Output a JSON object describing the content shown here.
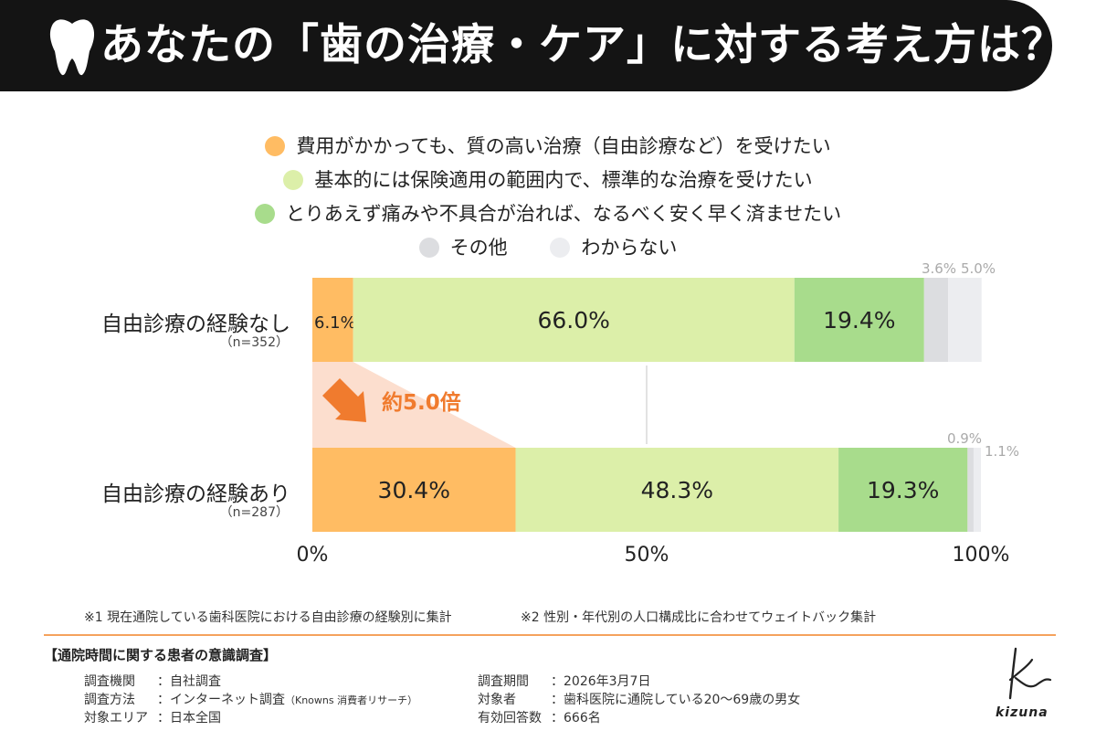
{
  "header": {
    "title": "あなたの「歯の治療・ケア」に対する考え方は？",
    "icon": "tooth-icon",
    "background": "#141414"
  },
  "chart_data": {
    "type": "bar",
    "orientation": "horizontal",
    "stacked": true,
    "xlim": [
      0,
      100
    ],
    "x_ticks": [
      "0%",
      "50%",
      "100%"
    ],
    "grid": "vertical line at 50%",
    "legend_placement": "top",
    "categories": [
      {
        "label": "自由診療の経験なし",
        "n": "（n=352）"
      },
      {
        "label": "自由診療の経験あり",
        "n": "（n=287）"
      }
    ],
    "series": [
      {
        "name": "費用がかかっても、質の高い治療（自由診療など）を受けたい",
        "color": "#ffbc63",
        "values": [
          6.1,
          30.4
        ],
        "labels": [
          "6.1%",
          "30.4%"
        ]
      },
      {
        "name": "基本的には保険適用の範囲内で、標準的な治療を受けたい",
        "color": "#dcefa9",
        "values": [
          66.0,
          48.3
        ],
        "labels": [
          "66.0%",
          "48.3%"
        ]
      },
      {
        "name": "とりあえず痛みや不具合が治れば、なるべく安く早く済ませたい",
        "color": "#a8dc8c",
        "values": [
          19.4,
          19.3
        ],
        "labels": [
          "19.4%",
          "19.3%"
        ]
      },
      {
        "name": "その他",
        "color": "#dcdde0",
        "values": [
          3.6,
          0.9
        ],
        "labels": [
          "3.6%",
          "0.9%"
        ]
      },
      {
        "name": "わからない",
        "color": "#ecedf0",
        "values": [
          5.0,
          1.1
        ],
        "labels": [
          "5.0%",
          "1.1%"
        ]
      }
    ],
    "annotation": {
      "text": "約5.0倍",
      "color": "#f07b2e",
      "highlight_color": "#fbd3bd"
    }
  },
  "footnotes": [
    "※1 現在通院している歯科医院における自由診療の経験別に集計",
    "※2 性別・年代別の人口構成比に合わせてウェイトバック集計"
  ],
  "survey": {
    "title": "【通院時間に関する患者の意識調査】",
    "left": [
      {
        "key": "調査機関",
        "value": "：自社調査"
      },
      {
        "key": "調査方法",
        "value": "：インターネット調査",
        "note": "（Knowns 消費者リサーチ）"
      },
      {
        "key": "対象エリア",
        "value": "：日本全国"
      }
    ],
    "right": [
      {
        "key": "調査期間",
        "value": "：2026年3月7日"
      },
      {
        "key": "対象者",
        "value": "：歯科医院に通院している20～69歳の男女"
      },
      {
        "key": "有効回答数",
        "value": "：666名"
      }
    ]
  },
  "brand": {
    "name": "kizuna",
    "mark": "K",
    "divider_color": "#f5a25d"
  }
}
